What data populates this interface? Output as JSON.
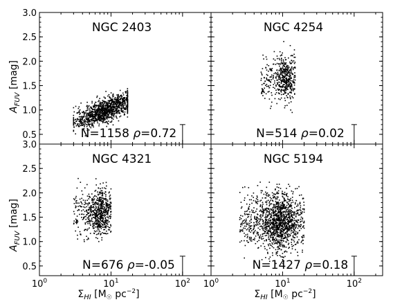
{
  "figure": {
    "ylabel_main": "A",
    "ylabel_sub": "FUV",
    "ylabel_unit": " [mag]",
    "xlabel_main": "Σ",
    "xlabel_sub": "HI",
    "xlabel_unit_pre": " [M",
    "xlabel_unit_sym": "☉",
    "xlabel_unit_post": " pc",
    "xlabel_unit_exp": "−2",
    "xlabel_unit_close": "]",
    "x_tick_labels": [
      {
        "base": "10",
        "exp": "0"
      },
      {
        "base": "10",
        "exp": "1"
      },
      {
        "base": "10",
        "exp": "2"
      }
    ],
    "y_tick_labels": [
      "0.5",
      "1.0",
      "1.5",
      "2.0",
      "2.5",
      "3.0"
    ]
  },
  "chart_data": [
    {
      "type": "scatter",
      "title": "NGC 2403",
      "stat_n": "N=1158",
      "stat_rho_symbol": "ρ",
      "stat_rho": "=0.72",
      "n_points": 1158,
      "x_scale": "log",
      "xlim": [
        1,
        250
      ],
      "ylim": [
        0.3,
        3.0
      ],
      "distribution": {
        "type": "linear_trend",
        "x_median": 8.5,
        "x_logspread": 0.22,
        "x_range": [
          3,
          17
        ],
        "y_at_median": 1.0,
        "slope_per_dex": 0.6,
        "y_scatter": 0.12
      },
      "error_bar": {
        "x": 100,
        "y": 0.5,
        "yerr": 0.2
      },
      "position": "top-left"
    },
    {
      "type": "scatter",
      "title": "NGC 4254",
      "stat_n": "N=514",
      "stat_rho_symbol": "ρ",
      "stat_rho": "=0.02",
      "n_points": 514,
      "x_scale": "log",
      "xlim": [
        1,
        250
      ],
      "ylim": [
        0.3,
        3.0
      ],
      "distribution": {
        "type": "cloud",
        "x_range": [
          5,
          15
        ],
        "x_peak": 11,
        "y_center": 1.65,
        "y_scatter": 0.22,
        "y_range": [
          0.9,
          2.6
        ]
      },
      "error_bar": {
        "x": 100,
        "y": 0.5,
        "yerr": 0.2
      },
      "position": "top-right"
    },
    {
      "type": "scatter",
      "title": "NGC 4321",
      "stat_n": "N=676",
      "stat_rho_symbol": "ρ",
      "stat_rho": "=-0.05",
      "n_points": 676,
      "x_scale": "log",
      "xlim": [
        1,
        250
      ],
      "ylim": [
        0.3,
        3.0
      ],
      "distribution": {
        "type": "cloud",
        "x_range": [
          3,
          10
        ],
        "x_peak": 7,
        "y_center": 1.6,
        "y_scatter": 0.25,
        "y_range": [
          1.0,
          2.4
        ]
      },
      "error_bar": {
        "x": 100,
        "y": 0.5,
        "yerr": 0.2
      },
      "position": "bottom-left"
    },
    {
      "type": "scatter",
      "title": "NGC 5194",
      "stat_n": "N=1427",
      "stat_rho_symbol": "ρ",
      "stat_rho": "=0.18",
      "n_points": 1427,
      "x_scale": "log",
      "xlim": [
        1,
        250
      ],
      "ylim": [
        0.3,
        3.0
      ],
      "distribution": {
        "type": "cloud",
        "x_range": [
          2.5,
          20
        ],
        "x_peak": 9,
        "y_center": 1.4,
        "y_scatter": 0.3,
        "y_range": [
          0.55,
          2.6
        ]
      },
      "error_bar": {
        "x": 100,
        "y": 0.5,
        "yerr": 0.2
      },
      "position": "bottom-right"
    }
  ]
}
